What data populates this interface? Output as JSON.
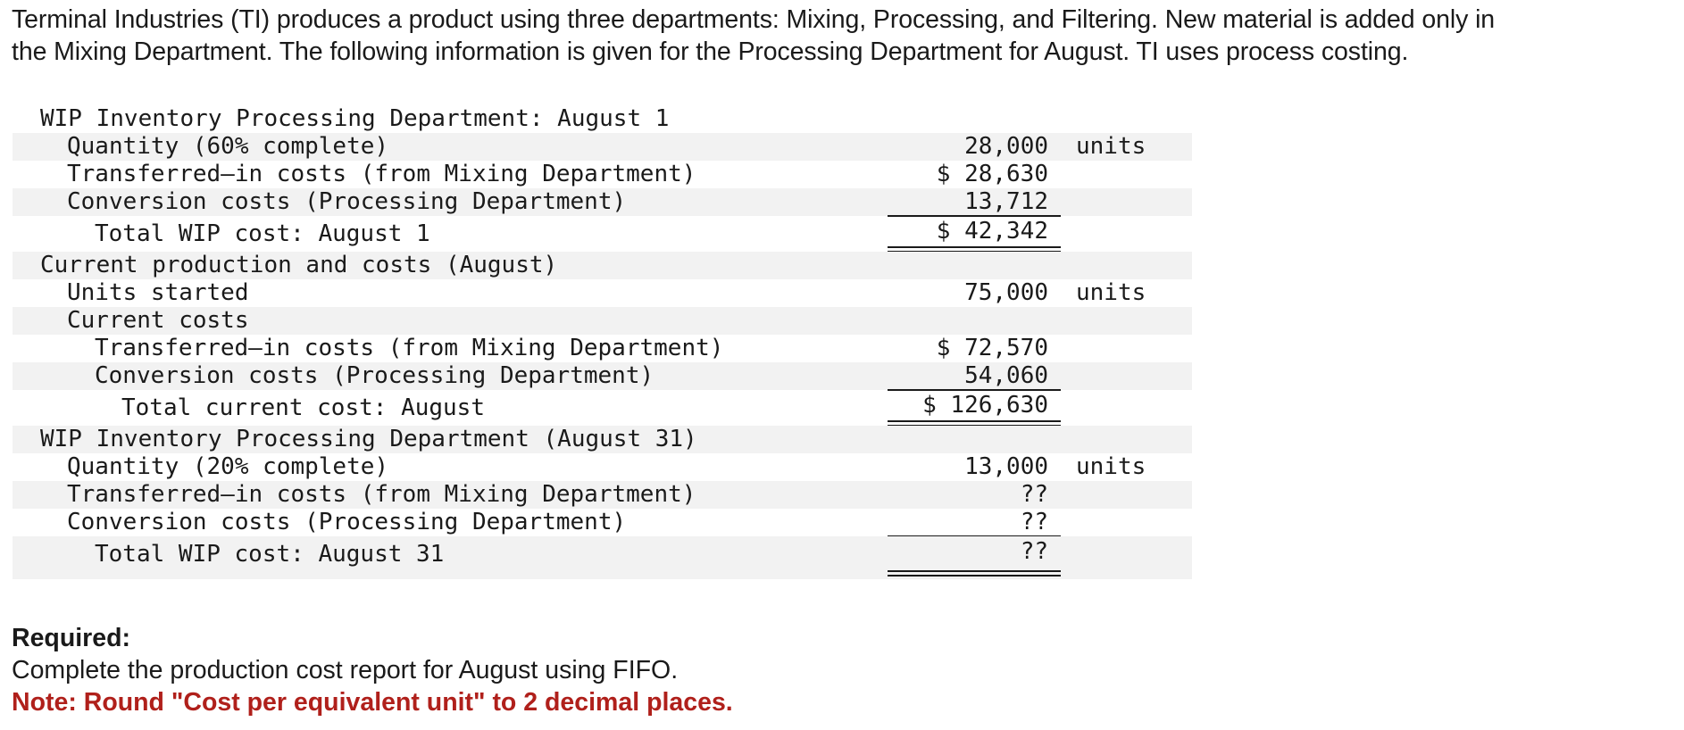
{
  "intro": {
    "line1": "Terminal Industries (TI) produces a product using three departments: Mixing, Processing, and Filtering. New material is added only in",
    "line2": "the Mixing Department. The following information is given for the Processing Department for August. TI uses process costing."
  },
  "table": {
    "beginning": {
      "heading": "WIP Inventory Processing Department: August 1",
      "quantity_label": "Quantity (60% complete)",
      "quantity_value": "28,000",
      "quantity_unit": "units",
      "transferred_label": "Transferred–in costs (from Mixing Department)",
      "transferred_value": "$ 28,630",
      "conversion_label": "Conversion costs (Processing Department)",
      "conversion_value": "13,712",
      "total_label": "Total WIP cost: August 1",
      "total_value": "$ 42,342"
    },
    "current": {
      "heading": "Current production and costs (August)",
      "units_label": "Units started",
      "units_value": "75,000",
      "units_unit": "units",
      "costs_heading": "Current costs",
      "transferred_label": "Transferred–in costs (from Mixing Department)",
      "transferred_value": "$ 72,570",
      "conversion_label": "Conversion costs (Processing Department)",
      "conversion_value": "54,060",
      "total_label": "Total current cost: August",
      "total_value": "$ 126,630"
    },
    "ending": {
      "heading": "WIP Inventory Processing Department (August 31)",
      "quantity_label": "Quantity (20% complete)",
      "quantity_value": "13,000",
      "quantity_unit": "units",
      "transferred_label": "Transferred–in costs (from Mixing Department)",
      "transferred_value": "??",
      "conversion_label": "Conversion costs (Processing Department)",
      "conversion_value": "??",
      "total_label": "Total WIP cost: August 31",
      "total_value": "??"
    }
  },
  "required": {
    "heading": "Required:",
    "instruction": "Complete the production cost report for August using FIFO.",
    "note": "Note: Round \"Cost per equivalent unit\" to 2 decimal places."
  }
}
